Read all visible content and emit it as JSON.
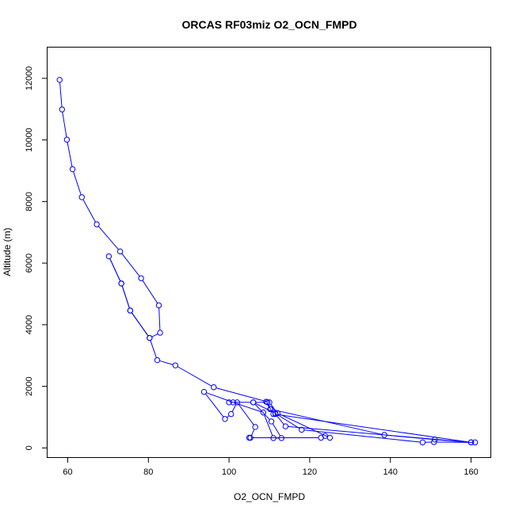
{
  "chart_data": {
    "type": "line",
    "title": "ORCAS RF03miz O2_OCN_FMPD",
    "xlabel": "O2_OCN_FMPD",
    "ylabel": "Altitude (m)",
    "xlim": [
      55,
      165
    ],
    "ylim": [
      -300,
      13000
    ],
    "xticks": [
      60,
      80,
      100,
      120,
      140,
      160
    ],
    "yticks": [
      0,
      2000,
      4000,
      6000,
      8000,
      10000,
      12000
    ],
    "grid": false,
    "marker": "open-circle",
    "color": "#0000ff",
    "series": [
      {
        "x": [
          58.0,
          58.6,
          59.8,
          61.2,
          63.5,
          67.2,
          73.0,
          78.2,
          82.6,
          82.9,
          80.3,
          75.5,
          73.3,
          70.2,
          73.3,
          75.5,
          80.3,
          82.2,
          86.7,
          96.2,
          110.0,
          112.0,
          125.0,
          123.8,
          122.8,
          105.0,
          105.3,
          106.5,
          102.0,
          100.5,
          99.0,
          93.8,
          101.0,
          108.5,
          111.0,
          113.0,
          110.5,
          106.0,
          111.5,
          118.0,
          148.0,
          150.8,
          161.0,
          160.0,
          111.0,
          109.2,
          110.2,
          138.5,
          151.0,
          160.0,
          114.0,
          111.5,
          110.3,
          109.5,
          106.0,
          100.0
        ],
        "y": [
          11950,
          10990,
          10010,
          9050,
          8140,
          7260,
          6380,
          5510,
          4630,
          3740,
          3570,
          4460,
          5340,
          6220,
          5340,
          4460,
          3570,
          2850,
          2680,
          1970,
          1480,
          1130,
          330,
          390,
          330,
          330,
          330,
          680,
          1480,
          1100,
          940,
          1820,
          1480,
          1150,
          320,
          320,
          860,
          1480,
          1120,
          590,
          180,
          190,
          180,
          180,
          1100,
          1500,
          1260,
          420,
          270,
          180,
          700,
          1100,
          1260,
          1480,
          1480,
          1480
        ]
      }
    ]
  }
}
